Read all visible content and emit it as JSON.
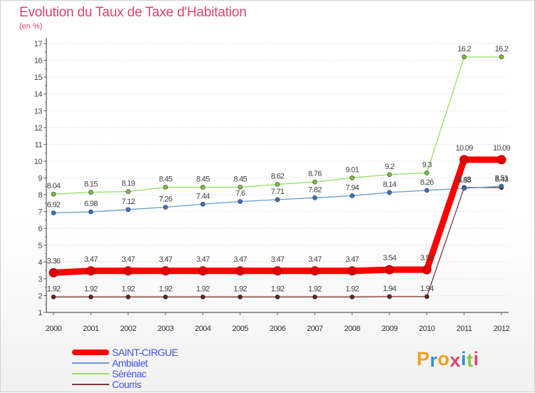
{
  "title": "Evolution du Taux de Taxe d'Habitation",
  "unit": "(en %)",
  "chart_data": {
    "type": "line",
    "title": "Evolution du Taux de Taxe d'Habitation",
    "ylabel": "(en %)",
    "xlabel": "",
    "categories": [
      "2000",
      "2001",
      "2002",
      "2003",
      "2004",
      "2005",
      "2006",
      "2007",
      "2008",
      "2009",
      "2010",
      "2011",
      "2012"
    ],
    "ylim": [
      1,
      17
    ],
    "yticks": [
      1,
      2,
      3,
      4,
      5,
      6,
      7,
      8,
      9,
      10,
      11,
      12,
      13,
      14,
      15,
      16,
      17
    ],
    "grid": "horizontal dotted",
    "series": [
      {
        "name": "SAINT-CIRGUE",
        "color": "#ff0000",
        "markerColor": "#dd0000",
        "values": [
          3.36,
          3.47,
          3.47,
          3.47,
          3.47,
          3.47,
          3.47,
          3.47,
          3.47,
          3.54,
          3.54,
          10.09,
          10.09
        ],
        "labels": [
          "3.36",
          "3.47",
          "3.47",
          "3.47",
          "3.47",
          "3.47",
          "3.47",
          "3.47",
          "3.47",
          "3.54",
          "3.54",
          "10.09",
          "10.09"
        ]
      },
      {
        "name": "Ambialet",
        "color": "#6a9ad0",
        "markerColor": "#3a74b8",
        "values": [
          6.92,
          6.98,
          7.12,
          7.26,
          7.44,
          7.6,
          7.71,
          7.82,
          7.94,
          8.14,
          8.26,
          8.38,
          8.51
        ],
        "labels": [
          "6.92",
          "6.98",
          "7.12",
          "7.26",
          "7.44",
          "7.6",
          "7.71",
          "7.82",
          "7.94",
          "8.14",
          "8.26",
          "8.38",
          "8.51"
        ]
      },
      {
        "name": "Sérénac",
        "color": "#99dd66",
        "markerColor": "#77c040",
        "values": [
          8.04,
          8.15,
          8.19,
          8.45,
          8.45,
          8.45,
          8.62,
          8.76,
          9.01,
          9.2,
          9.3,
          16.2,
          16.2
        ],
        "labels": [
          "8.04",
          "8.15",
          "8.19",
          "8.45",
          "8.45",
          "8.45",
          "8.62",
          "8.76",
          "9.01",
          "9.2",
          "9.3",
          "16.2",
          "16.2"
        ]
      },
      {
        "name": "Courris",
        "color": "#7a3a3a",
        "markerColor": "#6a1f1f",
        "values": [
          1.92,
          1.92,
          1.92,
          1.92,
          1.92,
          1.92,
          1.92,
          1.92,
          1.92,
          1.94,
          1.94,
          8.43,
          8.43
        ],
        "labels": [
          "1.92",
          "1.92",
          "1.92",
          "1.92",
          "1.92",
          "1.92",
          "1.92",
          "1.92",
          "1.92",
          "1.94",
          "1.94",
          "8.43",
          "8.43"
        ]
      }
    ],
    "legend": "bottom-left"
  },
  "legend": [
    "SAINT-CIRGUE",
    "Ambialet",
    "Sérénac",
    "Courris"
  ],
  "logo": {
    "letters": [
      "P",
      "r",
      "o",
      "x",
      "i",
      "t",
      "i"
    ],
    "colors": [
      "#f0a020",
      "#3a8fd8",
      "#f0a020",
      "#e0426f",
      "#3a8fd8",
      "#8cc63f",
      "#e0426f"
    ]
  }
}
